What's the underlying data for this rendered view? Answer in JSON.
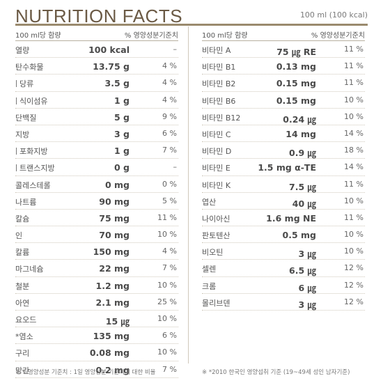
{
  "header": {
    "title": "NUTRITION FACTS",
    "serving": "100 ml (100 kcal)"
  },
  "left": {
    "col_label": "100 ml당 함량",
    "pct_label": "% 영양성분기준치",
    "rows": [
      {
        "name": "열량",
        "amount": "100 kcal",
        "pct": "–",
        "sub": false
      },
      {
        "name": "탄수화물",
        "amount": "13.75 g",
        "pct": "4 %",
        "sub": false
      },
      {
        "name": "당류",
        "amount": "3.5 g",
        "pct": "4 %",
        "sub": true
      },
      {
        "name": "식이섬유",
        "amount": "1 g",
        "pct": "4 %",
        "sub": true
      },
      {
        "name": "단백질",
        "amount": "5 g",
        "pct": "9 %",
        "sub": false
      },
      {
        "name": "지방",
        "amount": "3 g",
        "pct": "6 %",
        "sub": false
      },
      {
        "name": "포화지방",
        "amount": "1 g",
        "pct": "7 %",
        "sub": true
      },
      {
        "name": "트랜스지방",
        "amount": "0 g",
        "pct": "–",
        "sub": true
      },
      {
        "name": "콜레스테롤",
        "amount": "0 mg",
        "pct": "0 %",
        "sub": false
      },
      {
        "name": "나트륨",
        "amount": "90 mg",
        "pct": "5 %",
        "sub": false
      },
      {
        "name": "칼슘",
        "amount": "75 mg",
        "pct": "11 %",
        "sub": false
      },
      {
        "name": "인",
        "amount": "70 mg",
        "pct": "10 %",
        "sub": false
      },
      {
        "name": "칼륨",
        "amount": "150 mg",
        "pct": "4 %",
        "sub": false
      },
      {
        "name": "마그네슘",
        "amount": "22 mg",
        "pct": "7 %",
        "sub": false
      },
      {
        "name": "철분",
        "amount": "1.2 mg",
        "pct": "10 %",
        "sub": false
      },
      {
        "name": "아연",
        "amount": "2.1 mg",
        "pct": "25 %",
        "sub": false
      },
      {
        "name": "요오드",
        "amount": "15 ㎍",
        "pct": "10 %",
        "sub": false
      },
      {
        "name": "*염소",
        "amount": "135 mg",
        "pct": "6 %",
        "sub": false
      },
      {
        "name": "구리",
        "amount": "0.08 mg",
        "pct": "10 %",
        "sub": false
      },
      {
        "name": "망간",
        "amount": "0.2 mg",
        "pct": "7 %",
        "sub": false
      }
    ]
  },
  "right": {
    "col_label": "100 ml당 함량",
    "pct_label": "% 영양성분기준치",
    "rows": [
      {
        "name": "비타민 A",
        "amount": "75 ㎍ RE",
        "pct": "11 %",
        "sub": false
      },
      {
        "name": "비타민 B1",
        "amount": "0.13 mg",
        "pct": "11 %",
        "sub": false
      },
      {
        "name": "비타민 B2",
        "amount": "0.15 mg",
        "pct": "11 %",
        "sub": false
      },
      {
        "name": "비타민 B6",
        "amount": "0.15 mg",
        "pct": "10 %",
        "sub": false
      },
      {
        "name": "비타민 B12",
        "amount": "0.24 ㎍",
        "pct": "10 %",
        "sub": false
      },
      {
        "name": "비타민 C",
        "amount": "14 mg",
        "pct": "14 %",
        "sub": false
      },
      {
        "name": "비타민 D",
        "amount": "0.9 ㎍",
        "pct": "18 %",
        "sub": false
      },
      {
        "name": "비타민 E",
        "amount": "1.5 mg α-TE",
        "pct": "14 %",
        "sub": false
      },
      {
        "name": "비타민 K",
        "amount": "7.5 ㎍",
        "pct": "11 %",
        "sub": false
      },
      {
        "name": "엽산",
        "amount": "40 ㎍",
        "pct": "10 %",
        "sub": false
      },
      {
        "name": "나이아신",
        "amount": "1.6 mg NE",
        "pct": "11 %",
        "sub": false
      },
      {
        "name": "판토텐산",
        "amount": "0.5 mg",
        "pct": "10 %",
        "sub": false
      },
      {
        "name": "비오틴",
        "amount": "3 ㎍",
        "pct": "10 %",
        "sub": false
      },
      {
        "name": "셀렌",
        "amount": "6.5 ㎍",
        "pct": "12 %",
        "sub": false
      },
      {
        "name": "크롬",
        "amount": "6 ㎍",
        "pct": "12 %",
        "sub": false
      },
      {
        "name": "몰리브덴",
        "amount": "3 ㎍",
        "pct": "12 %",
        "sub": false
      }
    ]
  },
  "footer": {
    "left_note": "※ %영양성분 기준치 : 1일 영양성분 기준치에 대한 비율",
    "right_note": "※ *2010 한국인 영양섭취 기준 (19~49세 성인 남자기준)"
  }
}
